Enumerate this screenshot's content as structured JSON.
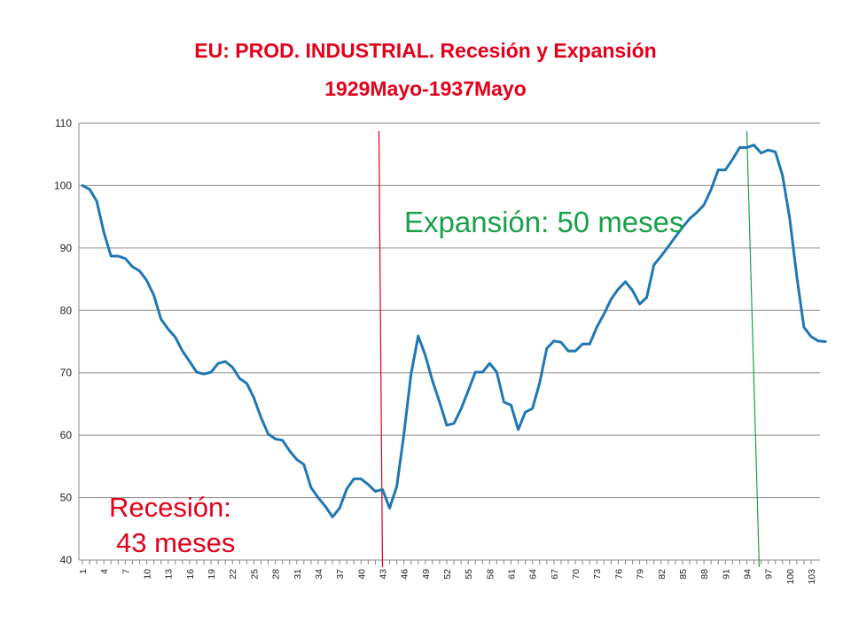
{
  "chart_data": {
    "type": "line",
    "title": "EU: PROD. INDUSTRIAL. Recesión y Expansión",
    "subtitle": "1929Mayo-1937Mayo",
    "xlabel": "",
    "ylabel": "",
    "ylim": [
      40,
      110
    ],
    "yticks": [
      40,
      50,
      60,
      70,
      80,
      90,
      100,
      110
    ],
    "x_tick_labels": [
      "1",
      "4",
      "7",
      "10",
      "13",
      "16",
      "19",
      "22",
      "25",
      "28",
      "31",
      "34",
      "37",
      "40",
      "43",
      "46",
      "49",
      "52",
      "55",
      "58",
      "61",
      "64",
      "67",
      "70",
      "73",
      "76",
      "79",
      "82",
      "85",
      "88",
      "91",
      "94",
      "97",
      "100",
      "103"
    ],
    "x_range": [
      1,
      103
    ],
    "grid": "horizontal",
    "series": [
      {
        "color": "#1f77b4",
        "values": [
          100,
          99.4,
          97.5,
          92.5,
          88.7,
          88.7,
          88.3,
          87,
          86.3,
          84.8,
          82.4,
          78.6,
          77,
          75.7,
          73.5,
          71.8,
          70.1,
          69.8,
          70.1,
          71.5,
          71.8,
          70.9,
          69.1,
          68.3,
          66,
          62.8,
          60.2,
          59.4,
          59.2,
          57.5,
          56.1,
          55.3,
          51.6,
          50,
          48.6,
          46.9,
          48.3,
          51.4,
          53,
          53,
          52.1,
          51,
          51.3,
          48.3,
          51.8,
          60.1,
          69.8,
          75.9,
          72.8,
          68.7,
          65.3,
          61.6,
          61.9,
          64.2,
          67.1,
          70.1,
          70.1,
          71.5,
          70.1,
          65.3,
          64.8,
          60.9,
          63.7,
          64.3,
          68.4,
          73.9,
          75.1,
          74.9,
          73.5,
          73.5,
          74.6,
          74.6,
          77.3,
          79.4,
          81.8,
          83.4,
          84.6,
          83.2,
          81,
          82.1,
          87.3,
          88.7,
          90.2,
          91.8,
          93.3,
          94.7,
          95.7,
          96.9,
          99.4,
          102.5,
          102.5,
          104.2,
          106.1,
          106.1,
          106.5,
          105.2,
          105.7,
          105.4,
          101.6,
          94.8,
          85.4,
          77.3,
          75.8,
          75.1,
          75
        ]
      }
    ],
    "annotations": {
      "expansion": "Expansión: 50 meses",
      "recession_line1": "Recesión:",
      "recession_line2": "43 meses",
      "recession_marker_at": 43,
      "expansion_marker_at": 94
    },
    "colors": {
      "title": "#e3001b",
      "expansion": "#1aa04a",
      "recession": "#e3001b"
    }
  }
}
